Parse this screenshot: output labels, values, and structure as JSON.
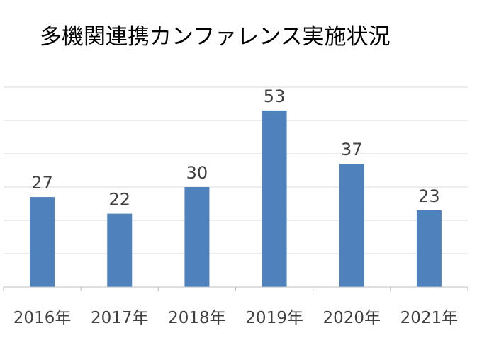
{
  "chart_data": {
    "type": "bar",
    "title": "多機関連携カンファレンス実施状況",
    "categories": [
      "2016年",
      "2017年",
      "2018年",
      "2019年",
      "2020年",
      "2021年"
    ],
    "values": [
      27,
      22,
      30,
      53,
      37,
      23
    ],
    "ylim": [
      0,
      60
    ],
    "grid": true,
    "legend": "none",
    "colors": {
      "bar": "#4f81bd",
      "grid": "#d9d9d9",
      "axis": "#bfbfbf",
      "label": "#404040"
    }
  }
}
